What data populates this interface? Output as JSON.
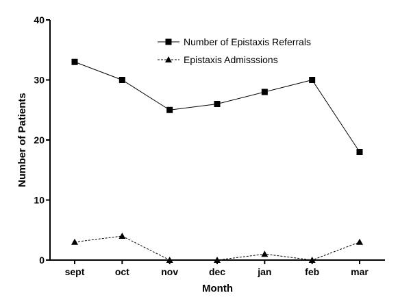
{
  "chart_data": {
    "type": "line",
    "categories": [
      "sept",
      "oct",
      "nov",
      "dec",
      "jan",
      "feb",
      "mar"
    ],
    "series": [
      {
        "name": "Number of Epistaxis Referrals",
        "values": [
          33,
          30,
          25,
          26,
          28,
          30,
          18
        ],
        "marker": "square",
        "line_style": "solid",
        "color": "#000000"
      },
      {
        "name": "Epistaxis Admisssions",
        "values": [
          3,
          4,
          0,
          0,
          1,
          0,
          3
        ],
        "marker": "triangle",
        "line_style": "dashed",
        "color": "#000000"
      }
    ],
    "title": "",
    "xlabel": "Month",
    "ylabel": "Number of Patients",
    "ylim": [
      0,
      40
    ],
    "yticks": [
      0,
      10,
      20,
      30,
      40
    ],
    "grid": false,
    "legend_position": "top-right"
  }
}
